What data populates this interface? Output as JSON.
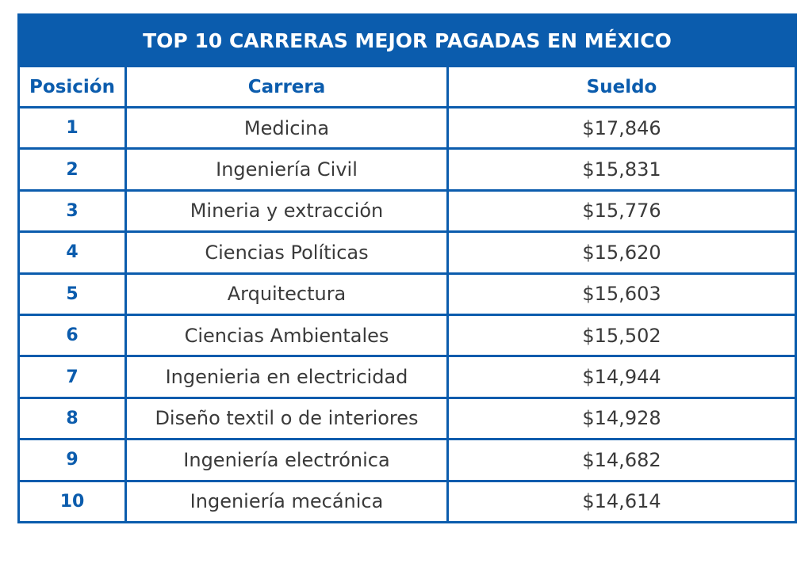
{
  "table": {
    "title": "TOP 10 CARRERAS MEJOR PAGADAS EN MÉXICO",
    "headers": [
      "Posición",
      "Carrera",
      "Sueldo"
    ],
    "rows": [
      [
        "1",
        "Medicina",
        "$17,846"
      ],
      [
        "2",
        "Ingeniería Civil",
        "$15,831"
      ],
      [
        "3",
        "Mineria y extracción",
        "$15,776"
      ],
      [
        "4",
        "Ciencias Políticas",
        "$15,620"
      ],
      [
        "5",
        "Arquitectura",
        "$15,603"
      ],
      [
        "6",
        "Ciencias Ambientales",
        "$15,502"
      ],
      [
        "7",
        "Ingenieria en electricidad",
        "$14,944"
      ],
      [
        "8",
        "Diseño textil o de interiores",
        "$14,928"
      ],
      [
        "9",
        "Ingeniería electrónica",
        "$14,682"
      ],
      [
        "10",
        "Ingeniería mecánica",
        "$14,614"
      ]
    ]
  }
}
